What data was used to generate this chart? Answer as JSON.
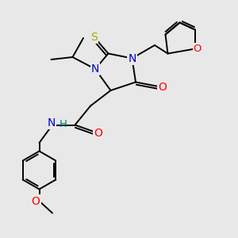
{
  "background_color": "#e8e8e8",
  "atom_colors": {
    "N": "#0000CD",
    "O": "#FF0000",
    "S": "#AAAA00",
    "H": "#008080",
    "C": "#000000"
  },
  "bond_color": "#000000",
  "bond_width": 1.4,
  "font_size": 10,
  "xlim": [
    0,
    10
  ],
  "ylim": [
    0,
    10
  ]
}
